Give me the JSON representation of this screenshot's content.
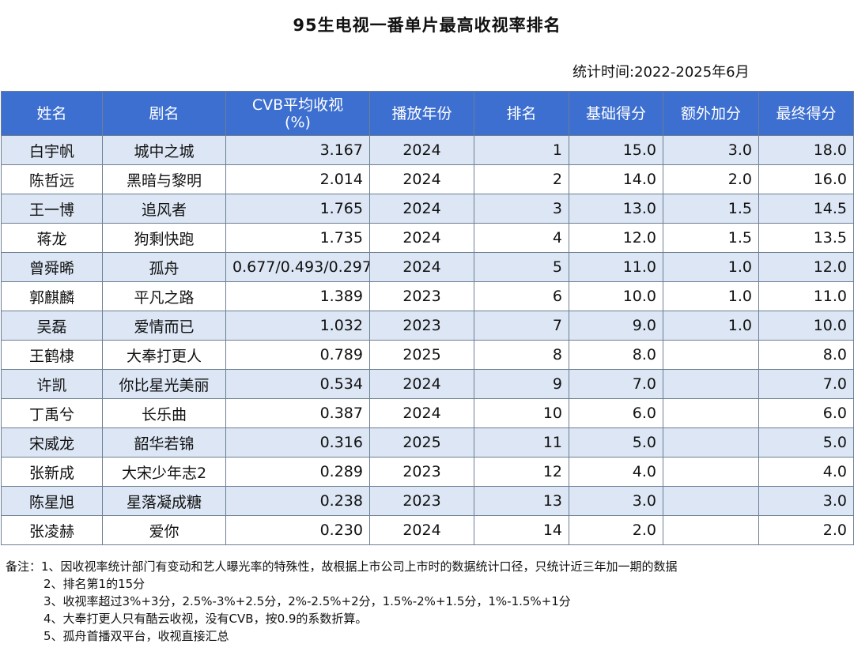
{
  "title": "95生电视一番单片最高收视率排名",
  "stat_time": "统计时间:2022-2025年6月",
  "table": {
    "headers": [
      "姓名",
      "剧名",
      "CVB平均收视\n(%)",
      "播放年份",
      "排名",
      "基础得分",
      "额外加分",
      "最终得分"
    ],
    "rows": [
      [
        "白宇帆",
        "城中之城",
        "3.167",
        "2024",
        "1",
        "15.0",
        "3.0",
        "18.0"
      ],
      [
        "陈哲远",
        "黑暗与黎明",
        "2.014",
        "2024",
        "2",
        "14.0",
        "2.0",
        "16.0"
      ],
      [
        "王一博",
        "追风者",
        "1.765",
        "2024",
        "3",
        "13.0",
        "1.5",
        "14.5"
      ],
      [
        "蒋龙",
        "狗剩快跑",
        "1.735",
        "2024",
        "4",
        "12.0",
        "1.5",
        "13.5"
      ],
      [
        "曾舜晞",
        "孤舟",
        "0.677/0.493/0.297",
        "2024",
        "5",
        "11.0",
        "1.0",
        "12.0"
      ],
      [
        "郭麒麟",
        "平凡之路",
        "1.389",
        "2023",
        "6",
        "10.0",
        "1.0",
        "11.0"
      ],
      [
        "吴磊",
        "爱情而已",
        "1.032",
        "2023",
        "7",
        "9.0",
        "1.0",
        "10.0"
      ],
      [
        "王鹤棣",
        "大奉打更人",
        "0.789",
        "2025",
        "8",
        "8.0",
        "",
        "8.0"
      ],
      [
        "许凯",
        "你比星光美丽",
        "0.534",
        "2024",
        "9",
        "7.0",
        "",
        "7.0"
      ],
      [
        "丁禹兮",
        "长乐曲",
        "0.387",
        "2024",
        "10",
        "6.0",
        "",
        "6.0"
      ],
      [
        "宋威龙",
        "韶华若锦",
        "0.316",
        "2025",
        "11",
        "5.0",
        "",
        "5.0"
      ],
      [
        "张新成",
        "大宋少年志2",
        "0.289",
        "2023",
        "12",
        "4.0",
        "",
        "4.0"
      ],
      [
        "陈星旭",
        "星落凝成糖",
        "0.238",
        "2023",
        "13",
        "3.0",
        "",
        "3.0"
      ],
      [
        "张凌赫",
        "爱你",
        "0.230",
        "2024",
        "14",
        "2.0",
        "",
        "2.0"
      ]
    ]
  },
  "notes": [
    "备注：1、因收视率统计部门有变动和艺人曝光率的特殊性，故根据上市公司上市时的数据统计口径，只统计近三年加一期的数据",
    "2、排名第1的15分",
    "3、收视率超过3%+3分，2.5%-3%+2.5分，2%-2.5%+2分，1.5%-2%+1.5分，1%-1.5%+1分",
    "4、大奉打更人只有酷云收视，没有CVB，按0.9的系数折算。",
    "5、孤舟首播双平台，收视直接汇总"
  ]
}
